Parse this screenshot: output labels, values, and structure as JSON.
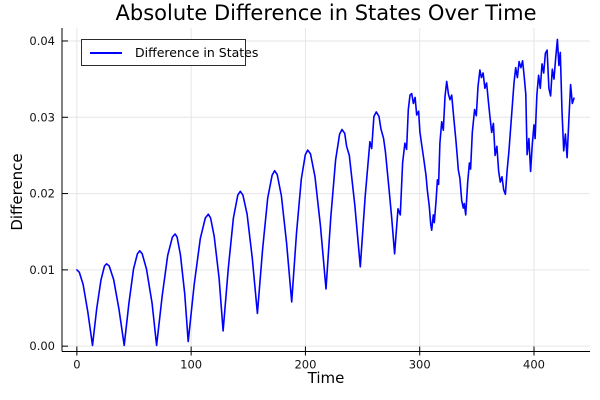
{
  "chart_data": {
    "type": "line",
    "title": "Absolute Difference in States Over Time",
    "xlabel": "Time",
    "ylabel": "Difference",
    "xlim": [
      -13,
      449
    ],
    "ylim": [
      -0.0007,
      0.0417
    ],
    "grid": true,
    "legend": {
      "position": "top-left",
      "entries": [
        {
          "label": "Difference in States",
          "color": "#0000ff"
        }
      ]
    },
    "x_ticks": {
      "values": [
        0,
        100,
        200,
        300,
        400
      ],
      "labels": [
        "0",
        "100",
        "200",
        "300",
        "400"
      ]
    },
    "y_ticks": {
      "values": [
        0,
        0.01,
        0.02,
        0.03,
        0.04
      ],
      "labels": [
        "0.00",
        "0.01",
        "0.02",
        "0.03",
        "0.04"
      ]
    },
    "colors": {
      "grid": "#e6e6e6",
      "axis": "#000000",
      "text": "#141414",
      "background": "#ffffff"
    },
    "series": [
      {
        "name": "Difference in States",
        "color": "#0000ff",
        "points": [
          [
            0,
            0.01
          ],
          [
            2.1,
            0.0097
          ],
          [
            5.5,
            0.0081
          ],
          [
            9.6,
            0.0045
          ],
          [
            13.7,
            0.0001
          ],
          [
            17.4,
            0.0049
          ],
          [
            21.1,
            0.0087
          ],
          [
            24.2,
            0.0105
          ],
          [
            26,
            0.0108
          ],
          [
            28.3,
            0.0105
          ],
          [
            32.2,
            0.0087
          ],
          [
            36.8,
            0.0049
          ],
          [
            41.4,
            0.0001
          ],
          [
            45.5,
            0.0056
          ],
          [
            49.6,
            0.0101
          ],
          [
            53,
            0.0121
          ],
          [
            55,
            0.0125
          ],
          [
            57.2,
            0.0121
          ],
          [
            60.9,
            0.0101
          ],
          [
            65.8,
            0.0056
          ],
          [
            69.8,
            0.0001
          ],
          [
            74.7,
            0.0066
          ],
          [
            79.5,
            0.0119
          ],
          [
            83.6,
            0.0143
          ],
          [
            86,
            0.0147
          ],
          [
            87.7,
            0.0143
          ],
          [
            90.6,
            0.012
          ],
          [
            94.4,
            0.0069
          ],
          [
            97.4,
            0.0006
          ],
          [
            102.7,
            0.0081
          ],
          [
            108,
            0.0141
          ],
          [
            112.4,
            0.0168
          ],
          [
            115,
            0.0173
          ],
          [
            117,
            0.0168
          ],
          [
            120.2,
            0.0144
          ],
          [
            124.5,
            0.0089
          ],
          [
            128,
            0.002
          ],
          [
            132.5,
            0.0102
          ],
          [
            137,
            0.0168
          ],
          [
            140.8,
            0.0198
          ],
          [
            143,
            0.0203
          ],
          [
            145.3,
            0.0198
          ],
          [
            149,
            0.0173
          ],
          [
            153.5,
            0.0115
          ],
          [
            158,
            0.0043
          ],
          [
            162.5,
            0.0127
          ],
          [
            167,
            0.0194
          ],
          [
            170.8,
            0.0224
          ],
          [
            173,
            0.023
          ],
          [
            175.3,
            0.0225
          ],
          [
            179,
            0.0197
          ],
          [
            183.5,
            0.0135
          ],
          [
            188,
            0.0058
          ],
          [
            192.2,
            0.0148
          ],
          [
            196.4,
            0.0219
          ],
          [
            199.9,
            0.0251
          ],
          [
            202,
            0.0257
          ],
          [
            204.4,
            0.0252
          ],
          [
            208.4,
            0.0222
          ],
          [
            213.2,
            0.0157
          ],
          [
            218,
            0.0075
          ],
          [
            222.2,
            0.0169
          ],
          [
            226.4,
            0.0244
          ],
          [
            229.9,
            0.0278
          ],
          [
            232,
            0.0284
          ],
          [
            234.4,
            0.0279
          ],
          [
            236,
            0.0262
          ],
          [
            238.4,
            0.025
          ],
          [
            243.2,
            0.0185
          ],
          [
            248,
            0.0104
          ],
          [
            252.2,
            0.0195
          ],
          [
            256.4,
            0.0268
          ],
          [
            258,
            0.0259
          ],
          [
            259.9,
            0.0301
          ],
          [
            262,
            0.0307
          ],
          [
            264.4,
            0.0301
          ],
          [
            266,
            0.0285
          ],
          [
            268.4,
            0.0272
          ],
          [
            270,
            0.0255
          ],
          [
            273.2,
            0.0205
          ],
          [
            275.5,
            0.0168
          ],
          [
            278,
            0.0121
          ],
          [
            281,
            0.018
          ],
          [
            283,
            0.0172
          ],
          [
            285,
            0.024
          ],
          [
            287,
            0.0266
          ],
          [
            288.5,
            0.0258
          ],
          [
            290,
            0.031
          ],
          [
            291.5,
            0.0329
          ],
          [
            293,
            0.0331
          ],
          [
            294.5,
            0.0318
          ],
          [
            296,
            0.0326
          ],
          [
            297.4,
            0.0303
          ],
          [
            299,
            0.0308
          ],
          [
            300.2,
            0.0281
          ],
          [
            301.7,
            0.0264
          ],
          [
            303.7,
            0.0244
          ],
          [
            305.5,
            0.0224
          ],
          [
            306.6,
            0.0205
          ],
          [
            308.4,
            0.0183
          ],
          [
            309.6,
            0.016
          ],
          [
            310.5,
            0.0152
          ],
          [
            311.9,
            0.0172
          ],
          [
            312.8,
            0.0162
          ],
          [
            314.3,
            0.0191
          ],
          [
            315.5,
            0.0218
          ],
          [
            316.5,
            0.0212
          ],
          [
            317.7,
            0.0266
          ],
          [
            319.2,
            0.0294
          ],
          [
            320.6,
            0.0283
          ],
          [
            322.1,
            0.0327
          ],
          [
            323.6,
            0.0347
          ],
          [
            325.2,
            0.033
          ],
          [
            326.5,
            0.0323
          ],
          [
            328,
            0.0329
          ],
          [
            330,
            0.0296
          ],
          [
            331.7,
            0.027
          ],
          [
            332.9,
            0.0248
          ],
          [
            333.8,
            0.0231
          ],
          [
            335.2,
            0.022
          ],
          [
            336.7,
            0.0191
          ],
          [
            338.1,
            0.0181
          ],
          [
            339,
            0.0187
          ],
          [
            340.2,
            0.0172
          ],
          [
            342,
            0.0215
          ],
          [
            343.5,
            0.024
          ],
          [
            344.5,
            0.0232
          ],
          [
            346,
            0.028
          ],
          [
            348,
            0.031
          ],
          [
            349.5,
            0.0302
          ],
          [
            351,
            0.034
          ],
          [
            352.7,
            0.0362
          ],
          [
            354,
            0.0352
          ],
          [
            355.5,
            0.0358
          ],
          [
            357,
            0.0338
          ],
          [
            358.5,
            0.0345
          ],
          [
            360,
            0.0322
          ],
          [
            361.5,
            0.03
          ],
          [
            363,
            0.028
          ],
          [
            364.5,
            0.0292
          ],
          [
            366,
            0.025
          ],
          [
            367.5,
            0.0262
          ],
          [
            369,
            0.023
          ],
          [
            370.5,
            0.0215
          ],
          [
            372,
            0.0222
          ],
          [
            373.5,
            0.0205
          ],
          [
            375,
            0.0199
          ],
          [
            376.5,
            0.023
          ],
          [
            378,
            0.0255
          ],
          [
            379.5,
            0.0285
          ],
          [
            381,
            0.0315
          ],
          [
            382.5,
            0.0345
          ],
          [
            384,
            0.0365
          ],
          [
            385.5,
            0.0352
          ],
          [
            387,
            0.0373
          ],
          [
            388.5,
            0.0365
          ],
          [
            390,
            0.0374
          ],
          [
            391.5,
            0.0352
          ],
          [
            392.8,
            0.033
          ],
          [
            394,
            0.0251
          ],
          [
            395.5,
            0.0272
          ],
          [
            397,
            0.0229
          ],
          [
            398.5,
            0.0265
          ],
          [
            400,
            0.029
          ],
          [
            401,
            0.0272
          ],
          [
            402.5,
            0.033
          ],
          [
            404,
            0.0355
          ],
          [
            405.5,
            0.0338
          ],
          [
            407,
            0.037
          ],
          [
            408.5,
            0.0358
          ],
          [
            410,
            0.0384
          ],
          [
            411.5,
            0.0388
          ],
          [
            413,
            0.0338
          ],
          [
            414.5,
            0.0328
          ],
          [
            416,
            0.0363
          ],
          [
            417.5,
            0.035
          ],
          [
            419,
            0.0378
          ],
          [
            420.5,
            0.0402
          ],
          [
            421.8,
            0.0368
          ],
          [
            423,
            0.0385
          ],
          [
            424.5,
            0.0308
          ],
          [
            426,
            0.0256
          ],
          [
            427.5,
            0.0278
          ],
          [
            429,
            0.0247
          ],
          [
            430.5,
            0.0298
          ],
          [
            432,
            0.0343
          ],
          [
            433.5,
            0.0318
          ],
          [
            435,
            0.0325
          ]
        ]
      }
    ]
  }
}
